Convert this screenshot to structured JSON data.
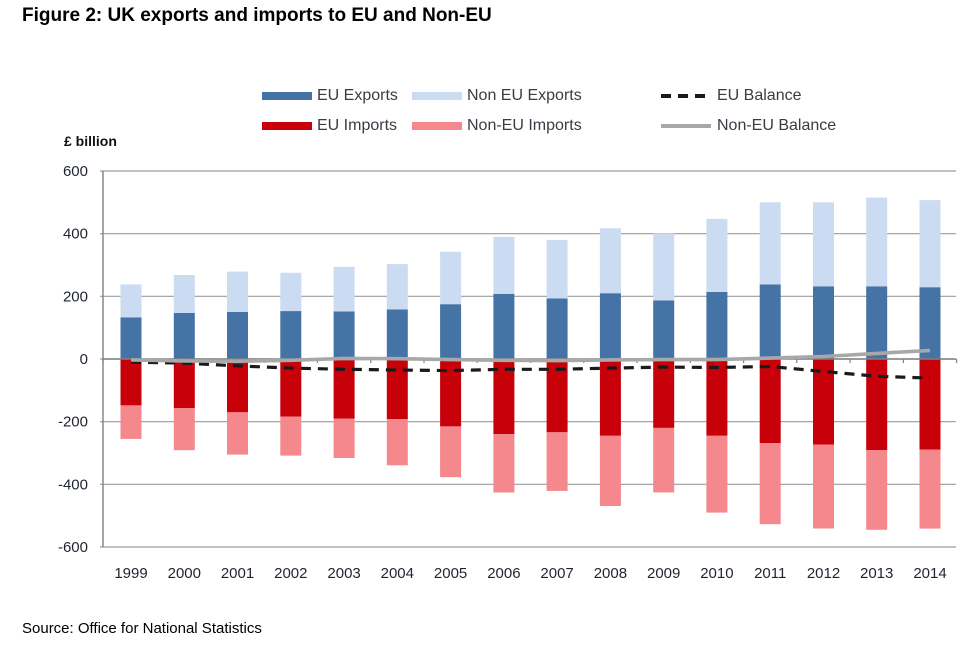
{
  "figure_title": "Figure 2: UK exports and imports to EU and Non-EU",
  "source": "Source: Office for National Statistics",
  "y_axis_title": "£ billion",
  "colors": {
    "eu_exports": "#4573A6",
    "non_eu_exports": "#CBDCF2",
    "eu_imports": "#C8000A",
    "non_eu_imports": "#F4888D",
    "eu_balance": "#1A1A1A",
    "non_eu_balance": "#A8A8A8",
    "gridline": "#9C9C9C",
    "axis": "#808080",
    "tick_label": "#1F2430"
  },
  "chart_data": {
    "type": "bar",
    "subtype": "stacked-bars-with-balance-lines",
    "title": "Figure 2: UK exports and imports to EU and Non-EU",
    "xlabel": "",
    "ylabel": "£ billion",
    "ylim": [
      -600,
      600
    ],
    "yticks": [
      600,
      400,
      200,
      0,
      -200,
      -400,
      -600
    ],
    "grid": true,
    "legend_position": "top",
    "categories": [
      "1999",
      "2000",
      "2001",
      "2002",
      "2003",
      "2004",
      "2005",
      "2006",
      "2007",
      "2008",
      "2009",
      "2010",
      "2011",
      "2012",
      "2013",
      "2014"
    ],
    "series": [
      {
        "name": "EU Exports",
        "type": "bar",
        "stack": "exports",
        "color": "#4573A6",
        "values": [
          133,
          147,
          150,
          153,
          152,
          158,
          175,
          208,
          193,
          210,
          187,
          214,
          238,
          232,
          232,
          229
        ]
      },
      {
        "name": "Non EU Exports",
        "type": "bar",
        "stack": "exports",
        "color": "#CBDCF2",
        "values": [
          105,
          121,
          129,
          122,
          142,
          145,
          167,
          182,
          187,
          207,
          214,
          233,
          262,
          268,
          283,
          278
        ]
      },
      {
        "name": "EU Imports",
        "type": "bar",
        "stack": "imports",
        "color": "#C8000A",
        "values": [
          -148,
          -157,
          -170,
          -184,
          -190,
          -192,
          -215,
          -240,
          -234,
          -245,
          -220,
          -245,
          -268,
          -273,
          -291,
          -289
        ]
      },
      {
        "name": "Non-EU Imports",
        "type": "bar",
        "stack": "imports",
        "color": "#F4888D",
        "values": [
          -107,
          -134,
          -135,
          -124,
          -126,
          -147,
          -162,
          -186,
          -187,
          -224,
          -206,
          -245,
          -259,
          -268,
          -254,
          -252
        ]
      },
      {
        "name": "EU Balance",
        "type": "line",
        "style": "dashed",
        "color": "#1A1A1A",
        "values": [
          -10,
          -13,
          -22,
          -29,
          -33,
          -35,
          -37,
          -33,
          -33,
          -29,
          -26,
          -27,
          -24,
          -40,
          -55,
          -61
        ]
      },
      {
        "name": "Non-EU Balance",
        "type": "line",
        "style": "solid",
        "color": "#A8A8A8",
        "values": [
          -3,
          -6,
          -7,
          -4,
          2,
          1,
          -2,
          -4,
          -5,
          -3,
          -2,
          -2,
          3,
          8,
          18,
          27
        ]
      }
    ],
    "legend_rows": [
      [
        0,
        1,
        4
      ],
      [
        2,
        3,
        5
      ]
    ]
  }
}
